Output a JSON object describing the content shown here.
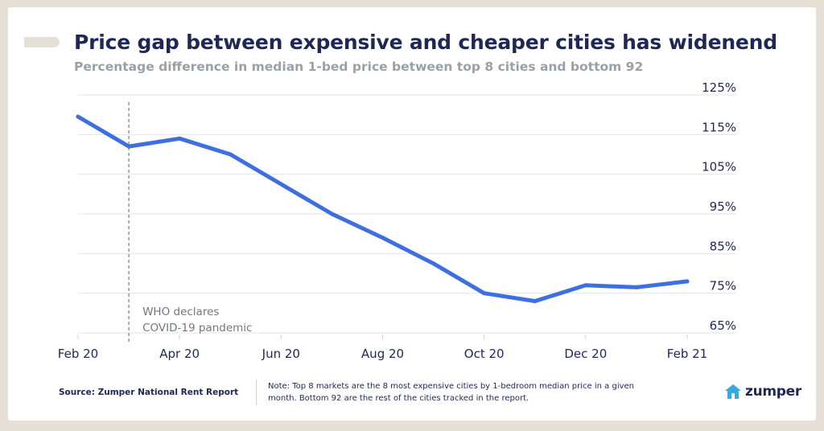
{
  "header": {
    "title": "Price gap between expensive and cheaper cities has widenend",
    "subtitle": "Percentage difference in median 1-bed price between top 8 cities and bottom 92"
  },
  "chart_data": {
    "type": "line",
    "title": "Price gap between expensive and cheaper cities has widenend",
    "subtitle": "Percentage difference in median 1-bed price between top 8 cities and bottom 92",
    "xlabel": "",
    "ylabel": "",
    "x": [
      "Feb 20",
      "Mar 20",
      "Apr 20",
      "May 20",
      "Jun 20",
      "Jul 20",
      "Aug 20",
      "Sep 20",
      "Oct 20",
      "Nov 20",
      "Dec 20",
      "Jan 21",
      "Feb 21"
    ],
    "x_tick_labels": [
      "Feb 20",
      "Apr 20",
      "Jun 20",
      "Aug 20",
      "Oct 20",
      "Dec 20",
      "Feb 21"
    ],
    "series": [
      {
        "name": "Price gap",
        "values": [
          119.5,
          112,
          114,
          110,
          102.5,
          95,
          89,
          82.5,
          75,
          73,
          77,
          76.5,
          78
        ]
      }
    ],
    "ylim": [
      65,
      125
    ],
    "y_ticks": [
      125,
      115,
      105,
      95,
      85,
      75,
      65
    ],
    "y_tick_labels": [
      "125%",
      "115%",
      "105%",
      "95%",
      "85%",
      "75%",
      "65%"
    ],
    "grid": true,
    "line_color": "#3e6fe0",
    "annotation": {
      "at": "Mar 20",
      "lines": [
        "WHO declares",
        "COVID-19 pandemic"
      ]
    }
  },
  "footer": {
    "source": "Source: Zumper National Rent Report",
    "note": "Note: Top 8 markets are the 8 most expensive cities by 1-bedroom median price in a given month. Bottom 92 are the rest of the cities tracked in the report."
  },
  "logo": {
    "text": "zumper",
    "icon": "house-icon",
    "color": "#35a9e0"
  }
}
